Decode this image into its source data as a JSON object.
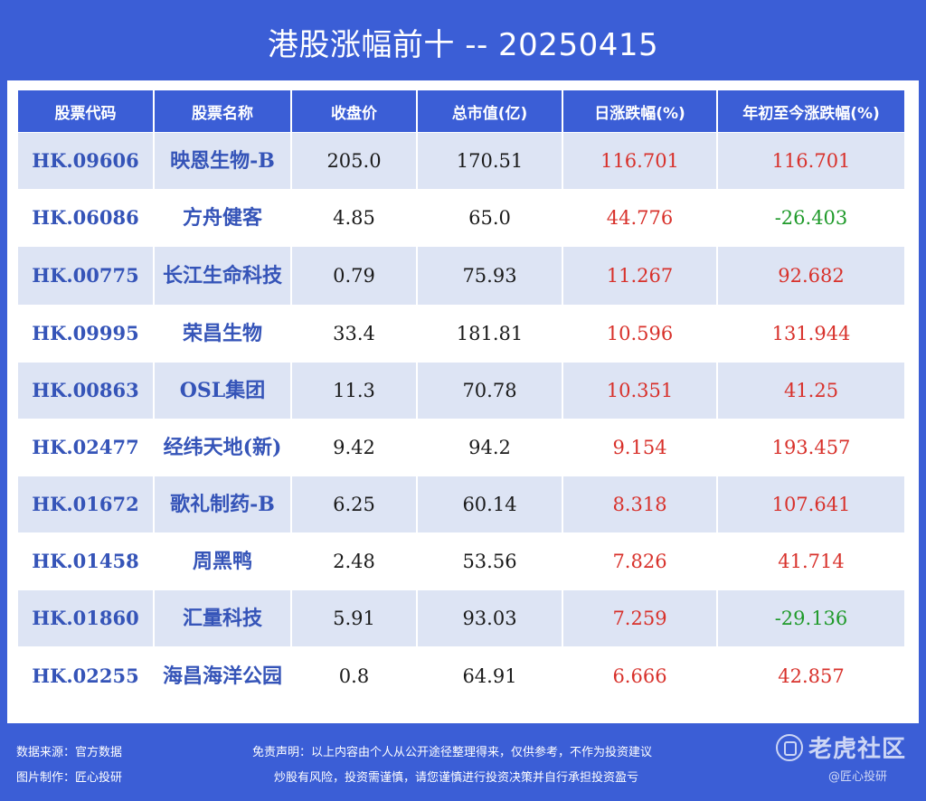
{
  "title": "港股涨幅前十 -- 20250415",
  "headers": [
    "股票代码",
    "股票名称",
    "收盘价",
    "总市值(亿)",
    "日涨跌幅(%)",
    "年初至今涨跌幅(%)"
  ],
  "rows": [
    {
      "code": "HK.09606",
      "name": "映恩生物-B",
      "close": "205.0",
      "mcap": "170.51",
      "day": "116.701",
      "ytd": "116.701"
    },
    {
      "code": "HK.06086",
      "name": "方舟健客",
      "close": "4.85",
      "mcap": "65.0",
      "day": "44.776",
      "ytd": "-26.403"
    },
    {
      "code": "HK.00775",
      "name": "长江生命科技",
      "close": "0.79",
      "mcap": "75.93",
      "day": "11.267",
      "ytd": "92.682"
    },
    {
      "code": "HK.09995",
      "name": "荣昌生物",
      "close": "33.4",
      "mcap": "181.81",
      "day": "10.596",
      "ytd": "131.944"
    },
    {
      "code": "HK.00863",
      "name": "OSL集团",
      "close": "11.3",
      "mcap": "70.78",
      "day": "10.351",
      "ytd": "41.25"
    },
    {
      "code": "HK.02477",
      "name": "经纬天地(新)",
      "close": "9.42",
      "mcap": "94.2",
      "day": "9.154",
      "ytd": "193.457"
    },
    {
      "code": "HK.01672",
      "name": "歌礼制药-B",
      "close": "6.25",
      "mcap": "60.14",
      "day": "8.318",
      "ytd": "107.641"
    },
    {
      "code": "HK.01458",
      "name": "周黑鸭",
      "close": "2.48",
      "mcap": "53.56",
      "day": "7.826",
      "ytd": "41.714"
    },
    {
      "code": "HK.01860",
      "name": "汇量科技",
      "close": "5.91",
      "mcap": "93.03",
      "day": "7.259",
      "ytd": "-29.136"
    },
    {
      "code": "HK.02255",
      "name": "海昌海洋公园",
      "close": "0.8",
      "mcap": "64.91",
      "day": "6.666",
      "ytd": "42.857"
    }
  ],
  "footer": {
    "source": "数据来源：官方数据",
    "maker": "图片制作：匠心投研",
    "disclaimer1": "免责声明：以上内容由个人从公开途径整理得来，仅供参考，不作为投资建议",
    "disclaimer2": "炒股有风险，投资需谨慎，请您谨慎进行投资决策并自行承担投资盈亏"
  },
  "watermark": {
    "brand": "老虎社区",
    "handle": "@匠心投研"
  },
  "colors": {
    "background": "#3b5ed6",
    "row_alt": "#dde4f4",
    "positive": "#d8312b",
    "negative": "#1f9a2a",
    "code_text": "#3554b8"
  }
}
